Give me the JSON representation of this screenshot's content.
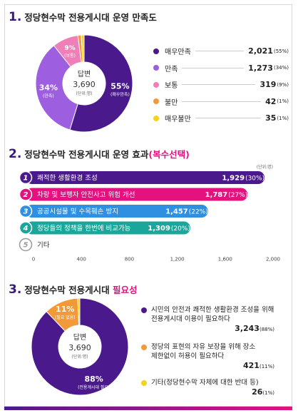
{
  "sections": {
    "s1": {
      "num": "1.",
      "title": "정당현수막 전용게시대 운영 만족도"
    },
    "s2": {
      "num": "2.",
      "title": "정당현수막 전용게시대 운영 효과",
      "title_hl": "(복수선택)"
    },
    "s3": {
      "num": "3.",
      "title": "정당현수막 전용게시대",
      "title_hl": "필요성"
    }
  },
  "chart_data": [
    {
      "type": "pie",
      "center_label": "답변",
      "center_value": "3,690",
      "center_unit": "(단위:명)",
      "slices": [
        {
          "label": "매우만족",
          "value": 2021,
          "pct": "55%",
          "display": "2,021",
          "pct_label": "(55%)",
          "color": "#4a1a8c"
        },
        {
          "label": "만족",
          "value": 1273,
          "pct": "34%",
          "display": "1,273",
          "pct_label": "(34%)",
          "color": "#9d5fe0"
        },
        {
          "label": "보통",
          "value": 319,
          "pct": "9%",
          "display": "319",
          "pct_label": "(9%)",
          "color": "#ee7fb8"
        },
        {
          "label": "불만",
          "value": 42,
          "pct": "1%",
          "display": "42",
          "pct_label": "(1%)",
          "color": "#f29a3a"
        },
        {
          "label": "매우불만",
          "value": 35,
          "pct": "1%",
          "display": "35",
          "pct_label": "(1%)",
          "color": "#f7d21a"
        }
      ]
    },
    {
      "type": "bar",
      "unit": "(단위:명)",
      "xlim": [
        0,
        2000
      ],
      "ticks": [
        "0",
        "400",
        "800",
        "1,200",
        "1,600",
        "2,000"
      ],
      "tick_values": [
        0,
        400,
        800,
        1200,
        1600,
        2000
      ],
      "bars": [
        {
          "rank": "1",
          "label": "쾌적한 생활환경 조성",
          "value": 1929,
          "display": "1,929",
          "pct": "(30%)",
          "color": "#4a1a8c"
        },
        {
          "rank": "2",
          "label": "차량 및 보행자 안전사고 위험 개선",
          "value": 1787,
          "display": "1,787",
          "pct": "(27%)",
          "color": "#e3127f"
        },
        {
          "rank": "3",
          "label": "공공시설물 및 수목훼손 방지",
          "value": 1457,
          "display": "1,457",
          "pct": "(22%)",
          "color": "#2f8fe0"
        },
        {
          "rank": "4",
          "label": "정당들의 정책을 한번에 비교가능",
          "value": 1309,
          "display": "1,309",
          "pct": "(20%)",
          "color": "#1aa69a"
        },
        {
          "rank": "5",
          "label": "기타",
          "value": 0,
          "display": "",
          "pct": "",
          "color": "#bbbbbb"
        }
      ]
    },
    {
      "type": "pie",
      "center_label": "답변",
      "center_value": "3,690",
      "center_unit": "(단위:명)",
      "slices": [
        {
          "label": "시민의 안전과 쾌적한 생활환경 조성을 위해 전용게시대 이용이 필요하다",
          "line1": "시민의 안전과 쾌적한 생활환경 조성을 위해",
          "line2": "전용게시대 이용이 필요하다",
          "value": 3243,
          "pct": "88%",
          "display": "3,243",
          "pct_label": "(88%)",
          "inner_label": "(전용게시대 필요)",
          "color": "#4a1a8c"
        },
        {
          "label": "정당의 표현의 자유 보장을 위해 장소 제한없이 허용이 필요하다",
          "line1": "정당의 표현의 자유 보장을 위해 장소",
          "line2": "제한없이 허용이 필요하다",
          "value": 421,
          "pct": "11%",
          "display": "421",
          "pct_label": "(11%)",
          "inner_label": "(필요 없음)",
          "color": "#f29a3a"
        },
        {
          "label": "기타(정당현수막 자체에 대한 반대 등)",
          "line1": "기타(정당현수막 자체에 대한 반대 등)",
          "line2": "",
          "value": 26,
          "pct": "1%",
          "display": "26",
          "pct_label": "(1%)",
          "inner_label": "",
          "color": "#f7d21a"
        }
      ]
    }
  ]
}
